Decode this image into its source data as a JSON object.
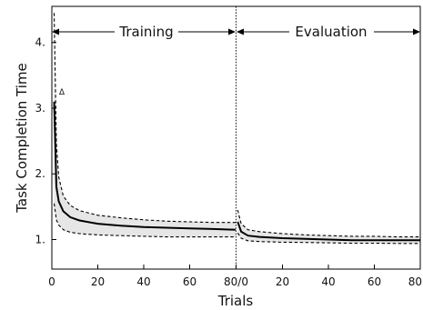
{
  "chart_data": {
    "type": "line",
    "ylabel": "Task Completion Time",
    "xlabel": "Trials",
    "ylim": [
      0.55,
      4.55
    ],
    "yticks": [
      "1.",
      "2.",
      "3.",
      "4."
    ],
    "ytick_values": [
      1,
      2,
      3,
      4
    ],
    "xticks": [
      "0",
      "20",
      "40",
      "60",
      "80/0",
      "20",
      "40",
      "60",
      "80"
    ],
    "annotation": "Δ",
    "phases": [
      {
        "name": "Training",
        "xlim": [
          0,
          80
        ],
        "x": [
          1,
          2,
          3,
          5,
          8,
          12,
          20,
          30,
          40,
          50,
          60,
          70,
          80
        ],
        "mean": [
          3.1,
          1.8,
          1.58,
          1.43,
          1.34,
          1.29,
          1.24,
          1.21,
          1.19,
          1.18,
          1.17,
          1.16,
          1.15
        ],
        "upper": [
          4.45,
          2.45,
          1.95,
          1.66,
          1.52,
          1.44,
          1.37,
          1.33,
          1.3,
          1.28,
          1.27,
          1.26,
          1.26
        ],
        "lower": [
          1.55,
          1.3,
          1.22,
          1.15,
          1.11,
          1.09,
          1.07,
          1.06,
          1.05,
          1.04,
          1.04,
          1.04,
          1.04
        ]
      },
      {
        "name": "Evaluation",
        "xlim": [
          0,
          80
        ],
        "x": [
          0.5,
          2,
          5,
          10,
          20,
          30,
          40,
          50,
          60,
          70,
          80
        ],
        "mean": [
          1.27,
          1.12,
          1.06,
          1.04,
          1.02,
          1.01,
          1.0,
          0.99,
          0.99,
          0.99,
          0.99
        ],
        "upper": [
          1.45,
          1.24,
          1.15,
          1.12,
          1.09,
          1.07,
          1.06,
          1.05,
          1.05,
          1.04,
          1.04
        ],
        "lower": [
          1.1,
          1.02,
          0.98,
          0.97,
          0.96,
          0.955,
          0.95,
          0.945,
          0.945,
          0.94,
          0.94
        ]
      }
    ]
  }
}
